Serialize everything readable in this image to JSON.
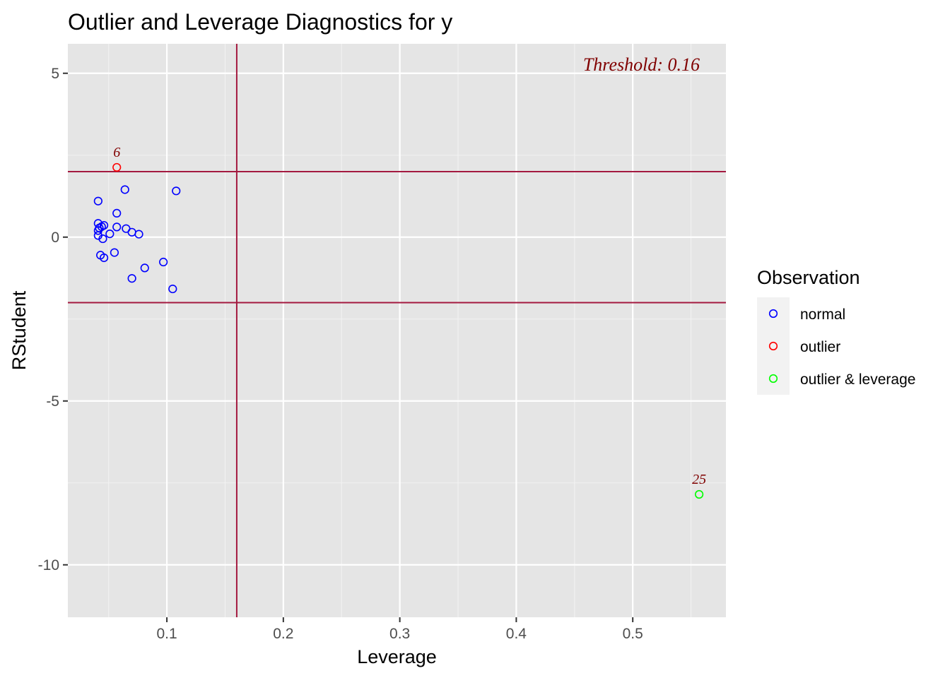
{
  "chart_data": {
    "type": "scatter",
    "title": "Outlier and Leverage Diagnostics for y",
    "xlabel": "Leverage",
    "ylabel": "RStudent",
    "xlim": [
      0.015,
      0.58
    ],
    "ylim": [
      -11.6,
      5.9
    ],
    "x_ticks": [
      0.1,
      0.2,
      0.3,
      0.4,
      0.5
    ],
    "x_tick_labels": [
      "0.1",
      "0.2",
      "0.3",
      "0.4",
      "0.5"
    ],
    "y_ticks": [
      5,
      0,
      -5,
      -10
    ],
    "y_tick_labels": [
      "5",
      "0",
      "-5",
      "-10"
    ],
    "grid": true,
    "threshold_x": 0.16,
    "threshold_y": [
      2,
      -2
    ],
    "threshold_label": "Threshold: 0.16",
    "legend": {
      "title": "Observation",
      "position": "right",
      "entries": [
        {
          "label": "normal",
          "color": "#0000ff"
        },
        {
          "label": "outlier",
          "color": "#ff0000"
        },
        {
          "label": "outlier & leverage",
          "color": "#00ff00"
        }
      ]
    },
    "series": [
      {
        "name": "normal",
        "color": "#0000ff",
        "points": [
          {
            "x": 0.041,
            "y": 1.1
          },
          {
            "x": 0.064,
            "y": 1.45
          },
          {
            "x": 0.108,
            "y": 1.41
          },
          {
            "x": 0.057,
            "y": 0.73
          },
          {
            "x": 0.041,
            "y": 0.42
          },
          {
            "x": 0.046,
            "y": 0.36
          },
          {
            "x": 0.044,
            "y": 0.32
          },
          {
            "x": 0.042,
            "y": 0.28
          },
          {
            "x": 0.041,
            "y": 0.2
          },
          {
            "x": 0.057,
            "y": 0.31
          },
          {
            "x": 0.065,
            "y": 0.26
          },
          {
            "x": 0.07,
            "y": 0.15
          },
          {
            "x": 0.076,
            "y": 0.09
          },
          {
            "x": 0.051,
            "y": 0.1
          },
          {
            "x": 0.041,
            "y": 0.05
          },
          {
            "x": 0.045,
            "y": -0.05
          },
          {
            "x": 0.055,
            "y": -0.47
          },
          {
            "x": 0.043,
            "y": -0.55
          },
          {
            "x": 0.046,
            "y": -0.63
          },
          {
            "x": 0.097,
            "y": -0.76
          },
          {
            "x": 0.081,
            "y": -0.94
          },
          {
            "x": 0.07,
            "y": -1.26
          },
          {
            "x": 0.105,
            "y": -1.58
          }
        ]
      },
      {
        "name": "outlier",
        "color": "#ff0000",
        "points": [
          {
            "x": 0.057,
            "y": 2.13,
            "label": "6"
          }
        ]
      },
      {
        "name": "outlier & leverage",
        "color": "#00ff00",
        "points": [
          {
            "x": 0.557,
            "y": -7.85,
            "label": "25"
          }
        ]
      }
    ]
  }
}
